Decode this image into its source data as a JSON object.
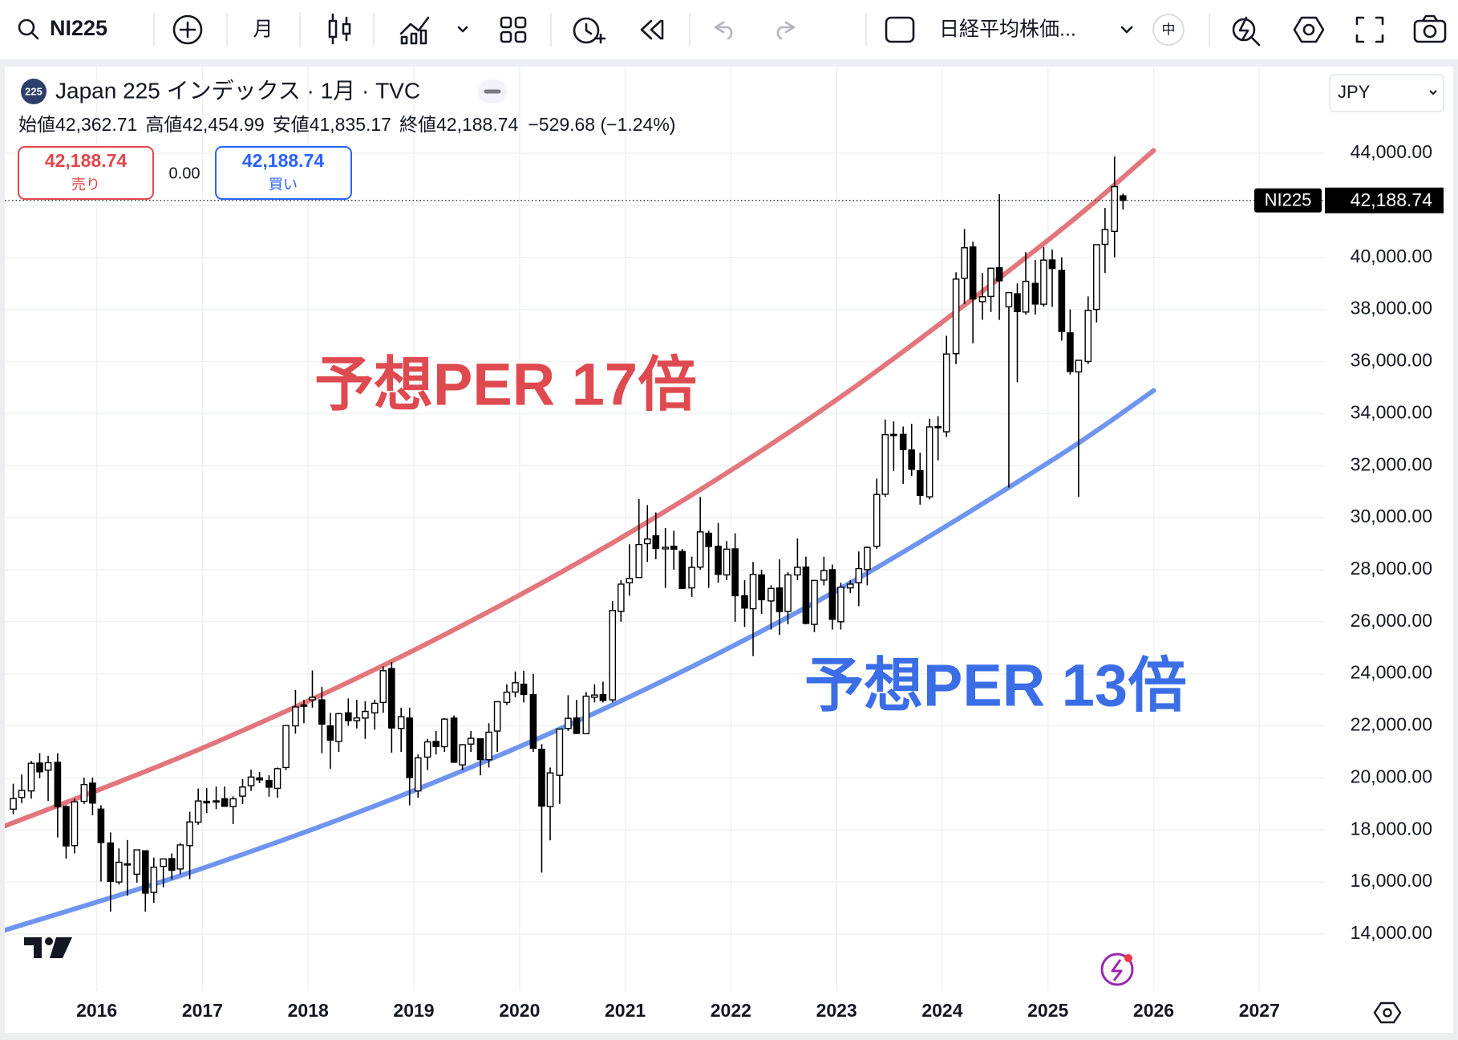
{
  "header": {
    "symbol": "NI225",
    "interval": "月",
    "symbol_name": "日経平均株価...",
    "lang": "中"
  },
  "chart_data": {
    "type": "candlestick",
    "legend_title": "Japan 225 インデックス · 1月 · TVC",
    "logo_text": "225",
    "ohlc_legend": [
      {
        "label": "始値",
        "value": "42,362.71"
      },
      {
        "label": "高値",
        "value": "42,454.99"
      },
      {
        "label": "安値",
        "value": "41,835.17"
      },
      {
        "label": "終値",
        "value": "42,188.74"
      }
    ],
    "change": "−529.68 (−1.24%)",
    "sell": {
      "price": "42,188.74",
      "label": "売り"
    },
    "spread": "0.00",
    "buy": {
      "price": "42,188.74",
      "label": "買い"
    },
    "currency": "JPY",
    "price_tag": {
      "name": "NI225",
      "label": "42,188.74"
    },
    "xlim": [
      2015.13,
      2027.62
    ],
    "xticks": [
      2016,
      2017,
      2018,
      2019,
      2020,
      2021,
      2022,
      2023,
      2024,
      2025,
      2026,
      2027
    ],
    "ylim": [
      11811,
      47330
    ],
    "yticks": [
      {
        "value": 14000,
        "label": "14,000.00"
      },
      {
        "value": 16000,
        "label": "16,000.00"
      },
      {
        "value": 18000,
        "label": "18,000.00"
      },
      {
        "value": 20000,
        "label": "20,000.00"
      },
      {
        "value": 22000,
        "label": "22,000.00"
      },
      {
        "value": 24000,
        "label": "24,000.00"
      },
      {
        "value": 26000,
        "label": "26,000.00"
      },
      {
        "value": 28000,
        "label": "28,000.00"
      },
      {
        "value": 30000,
        "label": "30,000.00"
      },
      {
        "value": 32000,
        "label": "32,000.00"
      },
      {
        "value": 34000,
        "label": "34,000.00"
      },
      {
        "value": 36000,
        "label": "36,000.00"
      },
      {
        "value": 38000,
        "label": "38,000.00"
      },
      {
        "value": 40000,
        "label": "40,000.00"
      },
      {
        "value": 42000,
        "label": "42,000.00"
      },
      {
        "value": 44000,
        "label": "44,000.00"
      }
    ],
    "grid": true,
    "up_color": "#ffffff",
    "down_color": "#000000",
    "candles": {
      "x": [
        2015.21,
        2015.29,
        2015.38,
        2015.46,
        2015.54,
        2015.63,
        2015.71,
        2015.79,
        2015.88,
        2015.96,
        2016.04,
        2016.13,
        2016.21,
        2016.29,
        2016.38,
        2016.46,
        2016.54,
        2016.63,
        2016.71,
        2016.79,
        2016.88,
        2016.96,
        2017.04,
        2017.13,
        2017.21,
        2017.29,
        2017.38,
        2017.46,
        2017.54,
        2017.63,
        2017.71,
        2017.79,
        2017.88,
        2017.96,
        2018.04,
        2018.13,
        2018.21,
        2018.29,
        2018.38,
        2018.46,
        2018.54,
        2018.63,
        2018.71,
        2018.79,
        2018.88,
        2018.96,
        2019.04,
        2019.13,
        2019.21,
        2019.29,
        2019.38,
        2019.46,
        2019.54,
        2019.63,
        2019.71,
        2019.79,
        2019.88,
        2019.96,
        2020.04,
        2020.13,
        2020.21,
        2020.29,
        2020.38,
        2020.46,
        2020.54,
        2020.63,
        2020.71,
        2020.79,
        2020.88,
        2020.96,
        2021.04,
        2021.13,
        2021.21,
        2021.29,
        2021.38,
        2021.46,
        2021.54,
        2021.63,
        2021.71,
        2021.79,
        2021.88,
        2021.96,
        2022.04,
        2022.13,
        2022.21,
        2022.29,
        2022.38,
        2022.46,
        2022.54,
        2022.63,
        2022.71,
        2022.79,
        2022.88,
        2022.96,
        2023.04,
        2023.13,
        2023.21,
        2023.29,
        2023.38,
        2023.46,
        2023.54,
        2023.63,
        2023.71,
        2023.79,
        2023.88,
        2023.96,
        2024.04,
        2024.13,
        2024.21,
        2024.29,
        2024.38,
        2024.46,
        2024.54,
        2024.63,
        2024.71,
        2024.79,
        2024.88,
        2024.96,
        2025.04,
        2025.13,
        2025.21,
        2025.29,
        2025.38,
        2025.46,
        2025.54,
        2025.63,
        2025.71
      ],
      "open": [
        18800,
        19250,
        19500,
        20570,
        20300,
        20600,
        18900,
        17400,
        19100,
        19800,
        18800,
        17500,
        16000,
        16700,
        16300,
        17200,
        15600,
        16600,
        16900,
        16500,
        17400,
        18300,
        19100,
        19100,
        19200,
        18900,
        19300,
        19700,
        20000,
        19900,
        19600,
        20400,
        22000,
        22800,
        23000,
        23000,
        22000,
        21400,
        22500,
        22200,
        22300,
        22500,
        22900,
        24200,
        21900,
        22300,
        19500,
        20800,
        21400,
        21200,
        22300,
        20500,
        21300,
        21500,
        20700,
        21800,
        22900,
        23300,
        23600,
        23200,
        21100,
        18900,
        20100,
        21900,
        22300,
        21700,
        23100,
        23200,
        23000,
        26400,
        27500,
        27700,
        29000,
        29300,
        28800,
        28900,
        28700,
        27300,
        28100,
        29400,
        28900,
        27800,
        28800,
        27000,
        26500,
        27800,
        26800,
        27300,
        26400,
        27800,
        28100,
        25900,
        27600,
        28000,
        26000,
        27300,
        27500,
        28000,
        28900,
        30900,
        33200,
        33200,
        32600,
        31800,
        30800,
        33500,
        33300,
        36300,
        39200,
        40400,
        38300,
        38500,
        39600,
        38100,
        38600,
        37900,
        39000,
        38200,
        39900,
        39500,
        37100,
        35600,
        36000,
        38000,
        40500,
        41000,
        42362.71
      ],
      "high": [
        19778,
        20133,
        20655,
        20952,
        20850,
        20946,
        18950,
        19200,
        20012,
        20012,
        18951,
        17905,
        17291,
        17613,
        17251,
        17100,
        16938,
        16900,
        17100,
        17500,
        18700,
        19592,
        19615,
        19668,
        19668,
        19289,
        19961,
        20318,
        20230,
        20100,
        20400,
        22011,
        23382,
        23000,
        24129,
        23500,
        22500,
        22500,
        23050,
        23000,
        22949,
        23000,
        24286,
        24448,
        22698,
        22700,
        20900,
        21500,
        21800,
        22300,
        22400,
        21300,
        21800,
        21500,
        22100,
        22900,
        23600,
        24091,
        24115,
        24000,
        21300,
        20400,
        21900,
        23178,
        23000,
        23300,
        23600,
        23700,
        26800,
        27600,
        28979,
        30714,
        30485,
        30200,
        29600,
        29500,
        28800,
        28500,
        30795,
        29500,
        29800,
        29100,
        29400,
        27600,
        28300,
        28000,
        27400,
        28400,
        27900,
        29200,
        28500,
        27600,
        28500,
        28200,
        27500,
        27600,
        28700,
        28900,
        31500,
        33772,
        33700,
        33500,
        33600,
        32500,
        33800,
        33900,
        36984,
        39426,
        41087,
        40600,
        39400,
        39400,
        42426,
        38200,
        39000,
        40200,
        39900,
        40400,
        40300,
        40000,
        38000,
        36000,
        38500,
        40500,
        41900,
        43876,
        42454.99
      ],
      "low": [
        18600,
        19034,
        19200,
        19990,
        19115,
        17714,
        16901,
        17100,
        19000,
        18562,
        16017,
        14865,
        15900,
        15471,
        15975,
        14864,
        15200,
        15800,
        16100,
        16300,
        16111,
        18200,
        18650,
        18800,
        18900,
        18224,
        19000,
        19500,
        19800,
        19280,
        19239,
        20300,
        21700,
        22100,
        22700,
        20950,
        20347,
        21000,
        22000,
        21900,
        21500,
        21851,
        22500,
        20971,
        21000,
        18949,
        19241,
        20300,
        20900,
        21000,
        20600,
        20300,
        21000,
        20100,
        20400,
        21000,
        22800,
        23100,
        22900,
        21000,
        16358,
        17600,
        19000,
        21800,
        21700,
        21700,
        22900,
        22900,
        22900,
        26000,
        27000,
        27800,
        28300,
        28400,
        27300,
        28000,
        27300,
        26950,
        28000,
        27300,
        27500,
        27600,
        26000,
        25800,
        24681,
        26300,
        25700,
        25500,
        25900,
        27600,
        25900,
        25600,
        27400,
        25700,
        25700,
        27100,
        26600,
        27400,
        28800,
        30800,
        31800,
        31300,
        31600,
        30500,
        30700,
        32200,
        33100,
        35900,
        38200,
        36700,
        37600,
        37900,
        37600,
        31156,
        35200,
        37800,
        37800,
        38100,
        38100,
        36800,
        35500,
        30793,
        35900,
        37500,
        39400,
        40000,
        41835.17
      ],
      "close": [
        19207,
        19520,
        20563,
        20236,
        20585,
        18890,
        17388,
        19083,
        19747,
        19034,
        17518,
        16027,
        16759,
        16666,
        17235,
        15576,
        16569,
        16887,
        16450,
        17425,
        18308,
        19114,
        19041,
        19119,
        18909,
        19197,
        19651,
        20033,
        19925,
        19646,
        20356,
        22012,
        22725,
        22765,
        23098,
        22068,
        21454,
        22468,
        22202,
        22305,
        22554,
        22865,
        24120,
        21920,
        22351,
        20015,
        20773,
        21385,
        21206,
        22259,
        20601,
        21276,
        21521,
        20704,
        21756,
        22927,
        23294,
        23657,
        23205,
        21143,
        18917,
        20193,
        21878,
        22288,
        21710,
        23140,
        23185,
        22977,
        26433,
        27444,
        27663,
        28966,
        29179,
        28813,
        28860,
        28791,
        27283,
        28089,
        29452,
        28892,
        27821,
        28791,
        27001,
        26526,
        27821,
        26847,
        27279,
        26393,
        27801,
        28091,
        25937,
        27587,
        27968,
        26094,
        27327,
        27445,
        28041,
        28856,
        30887,
        33189,
        33172,
        32619,
        31857,
        30858,
        33486,
        33464,
        36287,
        39166,
        40369,
        38405,
        38487,
        39583,
        39101,
        38647,
        37919,
        39081,
        38208,
        39894,
        39572,
        37155,
        35617,
        36045,
        37965,
        40487,
        41069,
        42718,
        42188.74
      ]
    },
    "trend_lines": [
      {
        "name": "予想PER 17倍",
        "color": "#e3767c",
        "label_color": "#de4a4f",
        "x": [
          2015.13,
          2017,
          2019,
          2021,
          2023,
          2025,
          2026
        ],
        "values": [
          18153,
          21148,
          24905,
          29320,
          34530,
          40660,
          44107
        ]
      },
      {
        "name": "予想PER 13倍",
        "color": "#6f95f0",
        "label_color": "#3b6ee6",
        "x": [
          2015.13,
          2017,
          2019,
          2021,
          2023,
          2025,
          2026
        ],
        "values": [
          14150,
          16527,
          19513,
          23036,
          27196,
          32106,
          34884
        ]
      }
    ]
  }
}
